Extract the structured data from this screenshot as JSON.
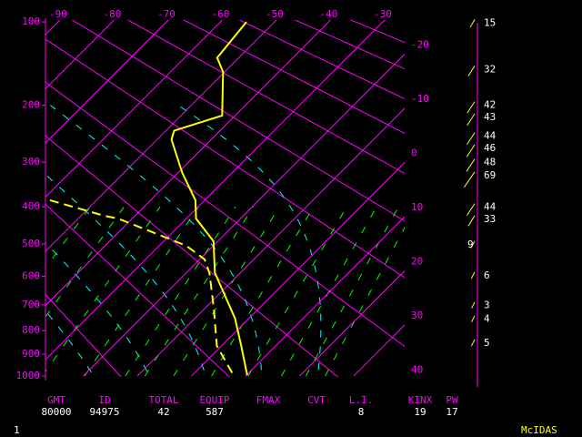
{
  "chart_data": {
    "type": "skew-t",
    "ylim": [
      1000,
      100
    ],
    "yticks": [
      100,
      200,
      300,
      400,
      500,
      600,
      700,
      800,
      900,
      1000
    ],
    "temperature_ticks_top": [
      -90,
      -80,
      -70,
      -60,
      -50,
      -40,
      -30
    ],
    "temperature_ticks_right": [
      -20,
      -10,
      0,
      10,
      20,
      30,
      40
    ],
    "temperature": {
      "color": "#ffff00",
      "pressure": [
        100,
        137,
        154,
        216,
        241,
        257,
        322,
        384,
        430,
        492,
        589,
        751,
        863,
        997
      ],
      "values": [
        -55.2,
        -54.0,
        -50.3,
        -42.4,
        -48.5,
        -47.3,
        -39.2,
        -31.7,
        -28.2,
        -20.8,
        -14.7,
        -2.6,
        3.6,
        10.2
      ]
    },
    "dewpoint": {
      "color": "#ffff00",
      "pressure": [
        384,
        423,
        430,
        474,
        505,
        546,
        589,
        716,
        863,
        986
      ],
      "values": [
        -58.6,
        -45.6,
        -42.6,
        -32.0,
        -25.0,
        -19.1,
        -15.7,
        -8.2,
        -0.9,
        7.0
      ]
    },
    "winds": [
      {
        "pressure": 101,
        "speed": 15
      },
      {
        "pressure": 151,
        "speed": 32
      },
      {
        "pressure": 200,
        "speed": 42
      },
      {
        "pressure": 219,
        "speed": 43
      },
      {
        "pressure": 251,
        "speed": 44
      },
      {
        "pressure": 273,
        "speed": 46
      },
      {
        "pressure": 301,
        "speed": 48
      },
      {
        "pressure": 328,
        "speed": 69
      },
      {
        "pressure": 401,
        "speed": 44
      },
      {
        "pressure": 432,
        "speed": 33
      },
      {
        "pressure": 502,
        "speed": 9
      },
      {
        "pressure": 598,
        "speed": 6
      },
      {
        "pressure": 703,
        "speed": 3
      },
      {
        "pressure": 755,
        "speed": 4
      },
      {
        "pressure": 852,
        "speed": 5
      }
    ],
    "footer": [
      {
        "label": "GMT",
        "value": 80000
      },
      {
        "label": "ID",
        "value": 94975
      },
      {
        "label": "TOTAL",
        "value": 42
      },
      {
        "label": "EQUIP",
        "value": 587
      },
      {
        "label": "FMAX"
      },
      {
        "label": "CVT"
      },
      {
        "label": "L.I.",
        "value": 8
      },
      {
        "label": "KINX",
        "value": 19
      },
      {
        "label": "PW",
        "value": 17
      }
    ],
    "status_number": 1,
    "brand": "McIDAS"
  }
}
